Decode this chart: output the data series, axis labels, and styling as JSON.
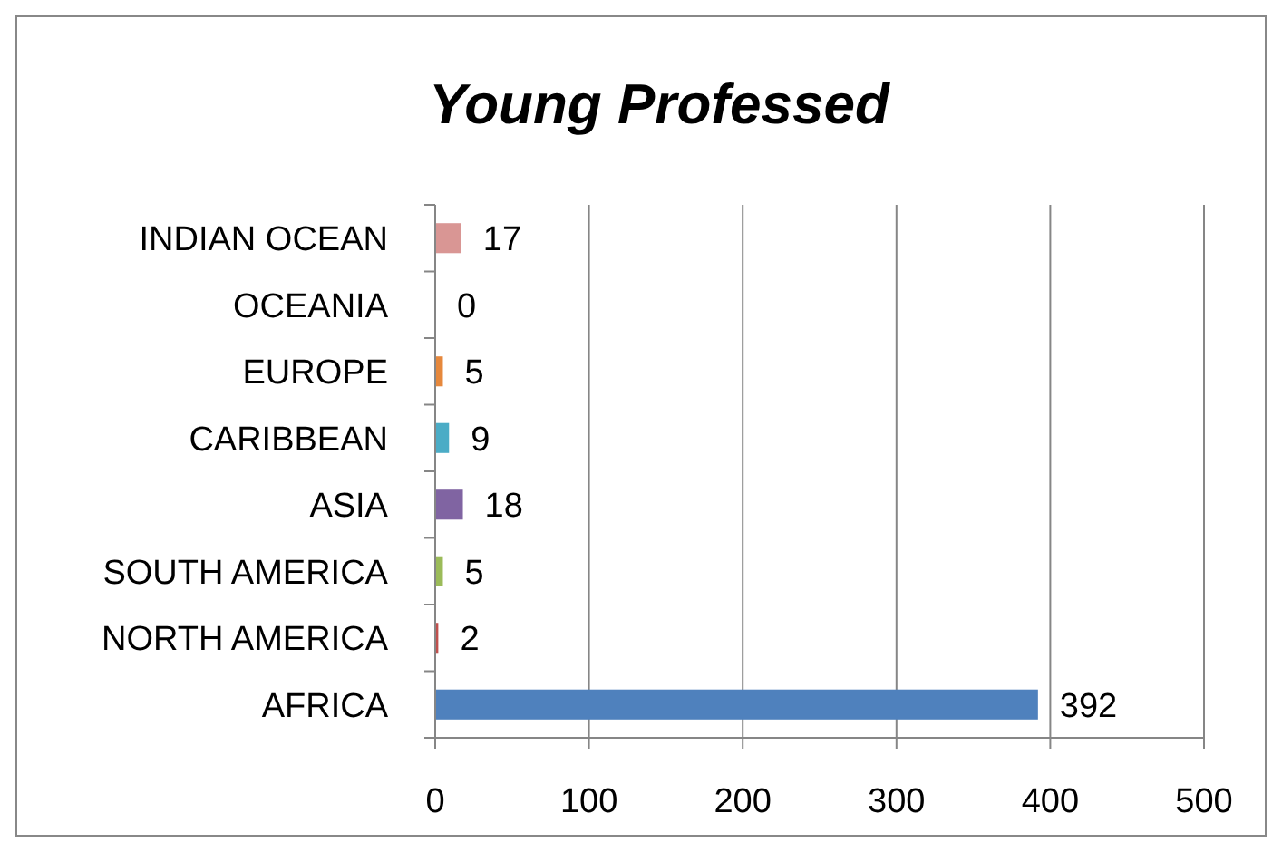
{
  "chart_data": {
    "type": "bar",
    "orientation": "horizontal",
    "title": "Young Professed",
    "categories": [
      "INDIAN OCEAN",
      "OCEANIA",
      "EUROPE",
      "CARIBBEAN",
      "ASIA",
      "SOUTH AMERICA",
      "NORTH AMERICA",
      "AFRICA"
    ],
    "values": [
      17,
      0,
      5,
      9,
      18,
      5,
      2,
      392
    ],
    "colors": [
      "#d99694",
      "#2c4d75",
      "#e6883c",
      "#4bacc6",
      "#8064a2",
      "#9bbb59",
      "#c0504d",
      "#4f81bd"
    ],
    "xlim": [
      0,
      500
    ],
    "xticks": [
      0,
      100,
      200,
      300,
      400,
      500
    ],
    "grid": "x",
    "data_labels": true
  }
}
